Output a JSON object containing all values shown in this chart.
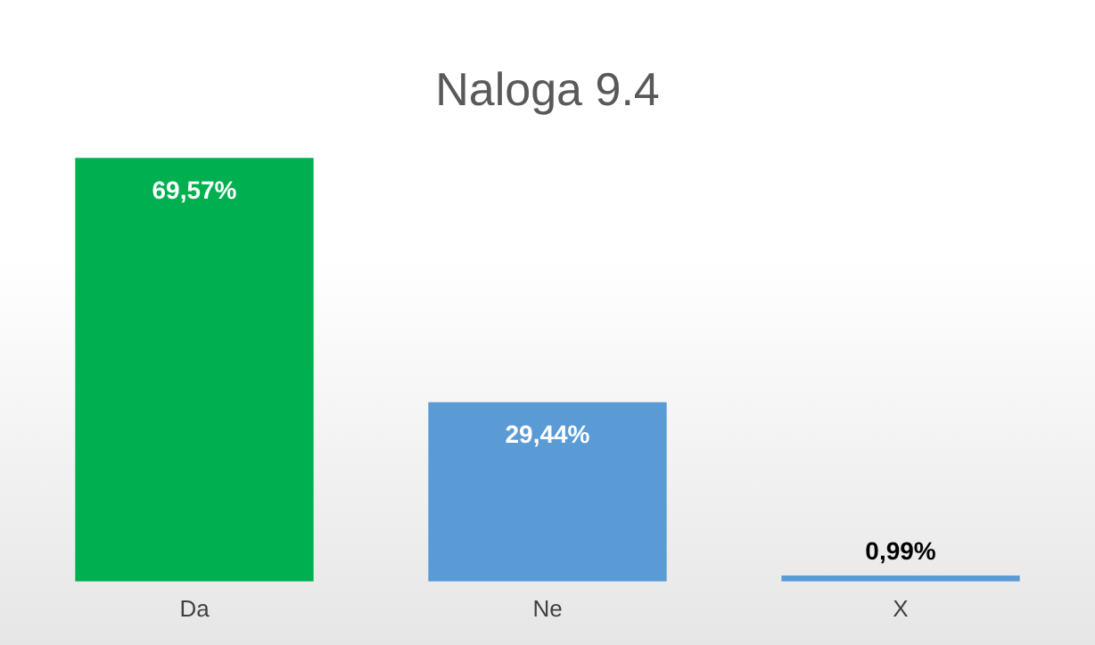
{
  "chart_data": {
    "type": "bar",
    "title": "Naloga 9.4",
    "categories": [
      "Da",
      "Ne",
      "X"
    ],
    "values": [
      69.57,
      29.44,
      0.99
    ],
    "colors": [
      "#00b050",
      "#5b9bd5",
      "#5b9bd5"
    ],
    "value_labels": [
      "69,57%",
      "29,44%",
      "0,99%"
    ],
    "grid": false,
    "legend": false
  }
}
